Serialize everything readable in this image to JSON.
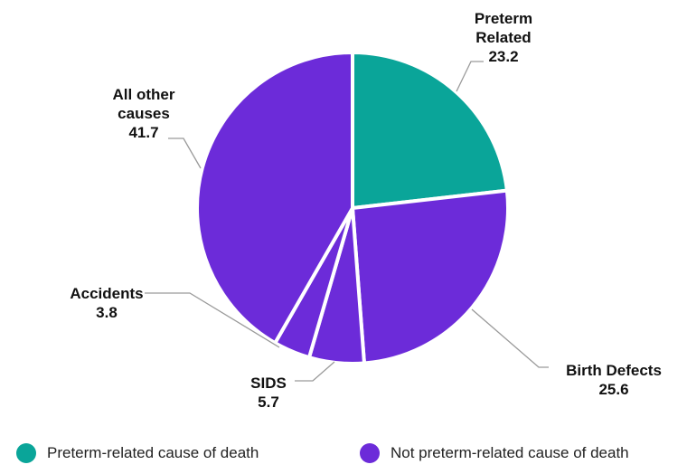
{
  "chart_data": {
    "type": "pie",
    "title": "",
    "slices": [
      {
        "label": [
          "Preterm",
          "Related"
        ],
        "value": 23.2,
        "value_text": "23.2",
        "group": 0
      },
      {
        "label": [
          "Birth Defects"
        ],
        "value": 25.6,
        "value_text": "25.6",
        "group": 1
      },
      {
        "label": [
          "SIDS"
        ],
        "value": 5.7,
        "value_text": "5.7",
        "group": 1
      },
      {
        "label": [
          "Accidents"
        ],
        "value": 3.8,
        "value_text": "3.8",
        "group": 1
      },
      {
        "label": [
          "All other",
          "causes"
        ],
        "value": 41.7,
        "value_text": "41.7",
        "group": 1
      }
    ],
    "start_angle_deg": 0,
    "direction": "clockwise",
    "legend": {
      "placement": "bottom",
      "entries": [
        {
          "name": "Preterm-related cause of death",
          "color": "#0aa599"
        },
        {
          "name": "Not preterm-related cause of death",
          "color": "#6c2bd9"
        }
      ]
    }
  }
}
